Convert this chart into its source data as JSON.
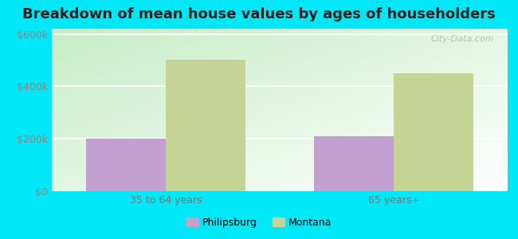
{
  "title": "Breakdown of mean house values by ages of householders",
  "categories": [
    "35 to 64 years",
    "65 years+"
  ],
  "philipsburg_values": [
    200000,
    210000
  ],
  "montana_values": [
    500000,
    450000
  ],
  "philipsburg_color": "#c4a0d0",
  "montana_color": "#c5d494",
  "background_outer": "#00e8f8",
  "yticks": [
    0,
    200000,
    400000,
    600000
  ],
  "ylabels": [
    "$0",
    "$200k",
    "$400k",
    "$600k"
  ],
  "ylim": [
    0,
    620000
  ],
  "title_fontsize": 13,
  "legend_labels": [
    "Philipsburg",
    "Montana"
  ],
  "watermark": "City-Data.com"
}
